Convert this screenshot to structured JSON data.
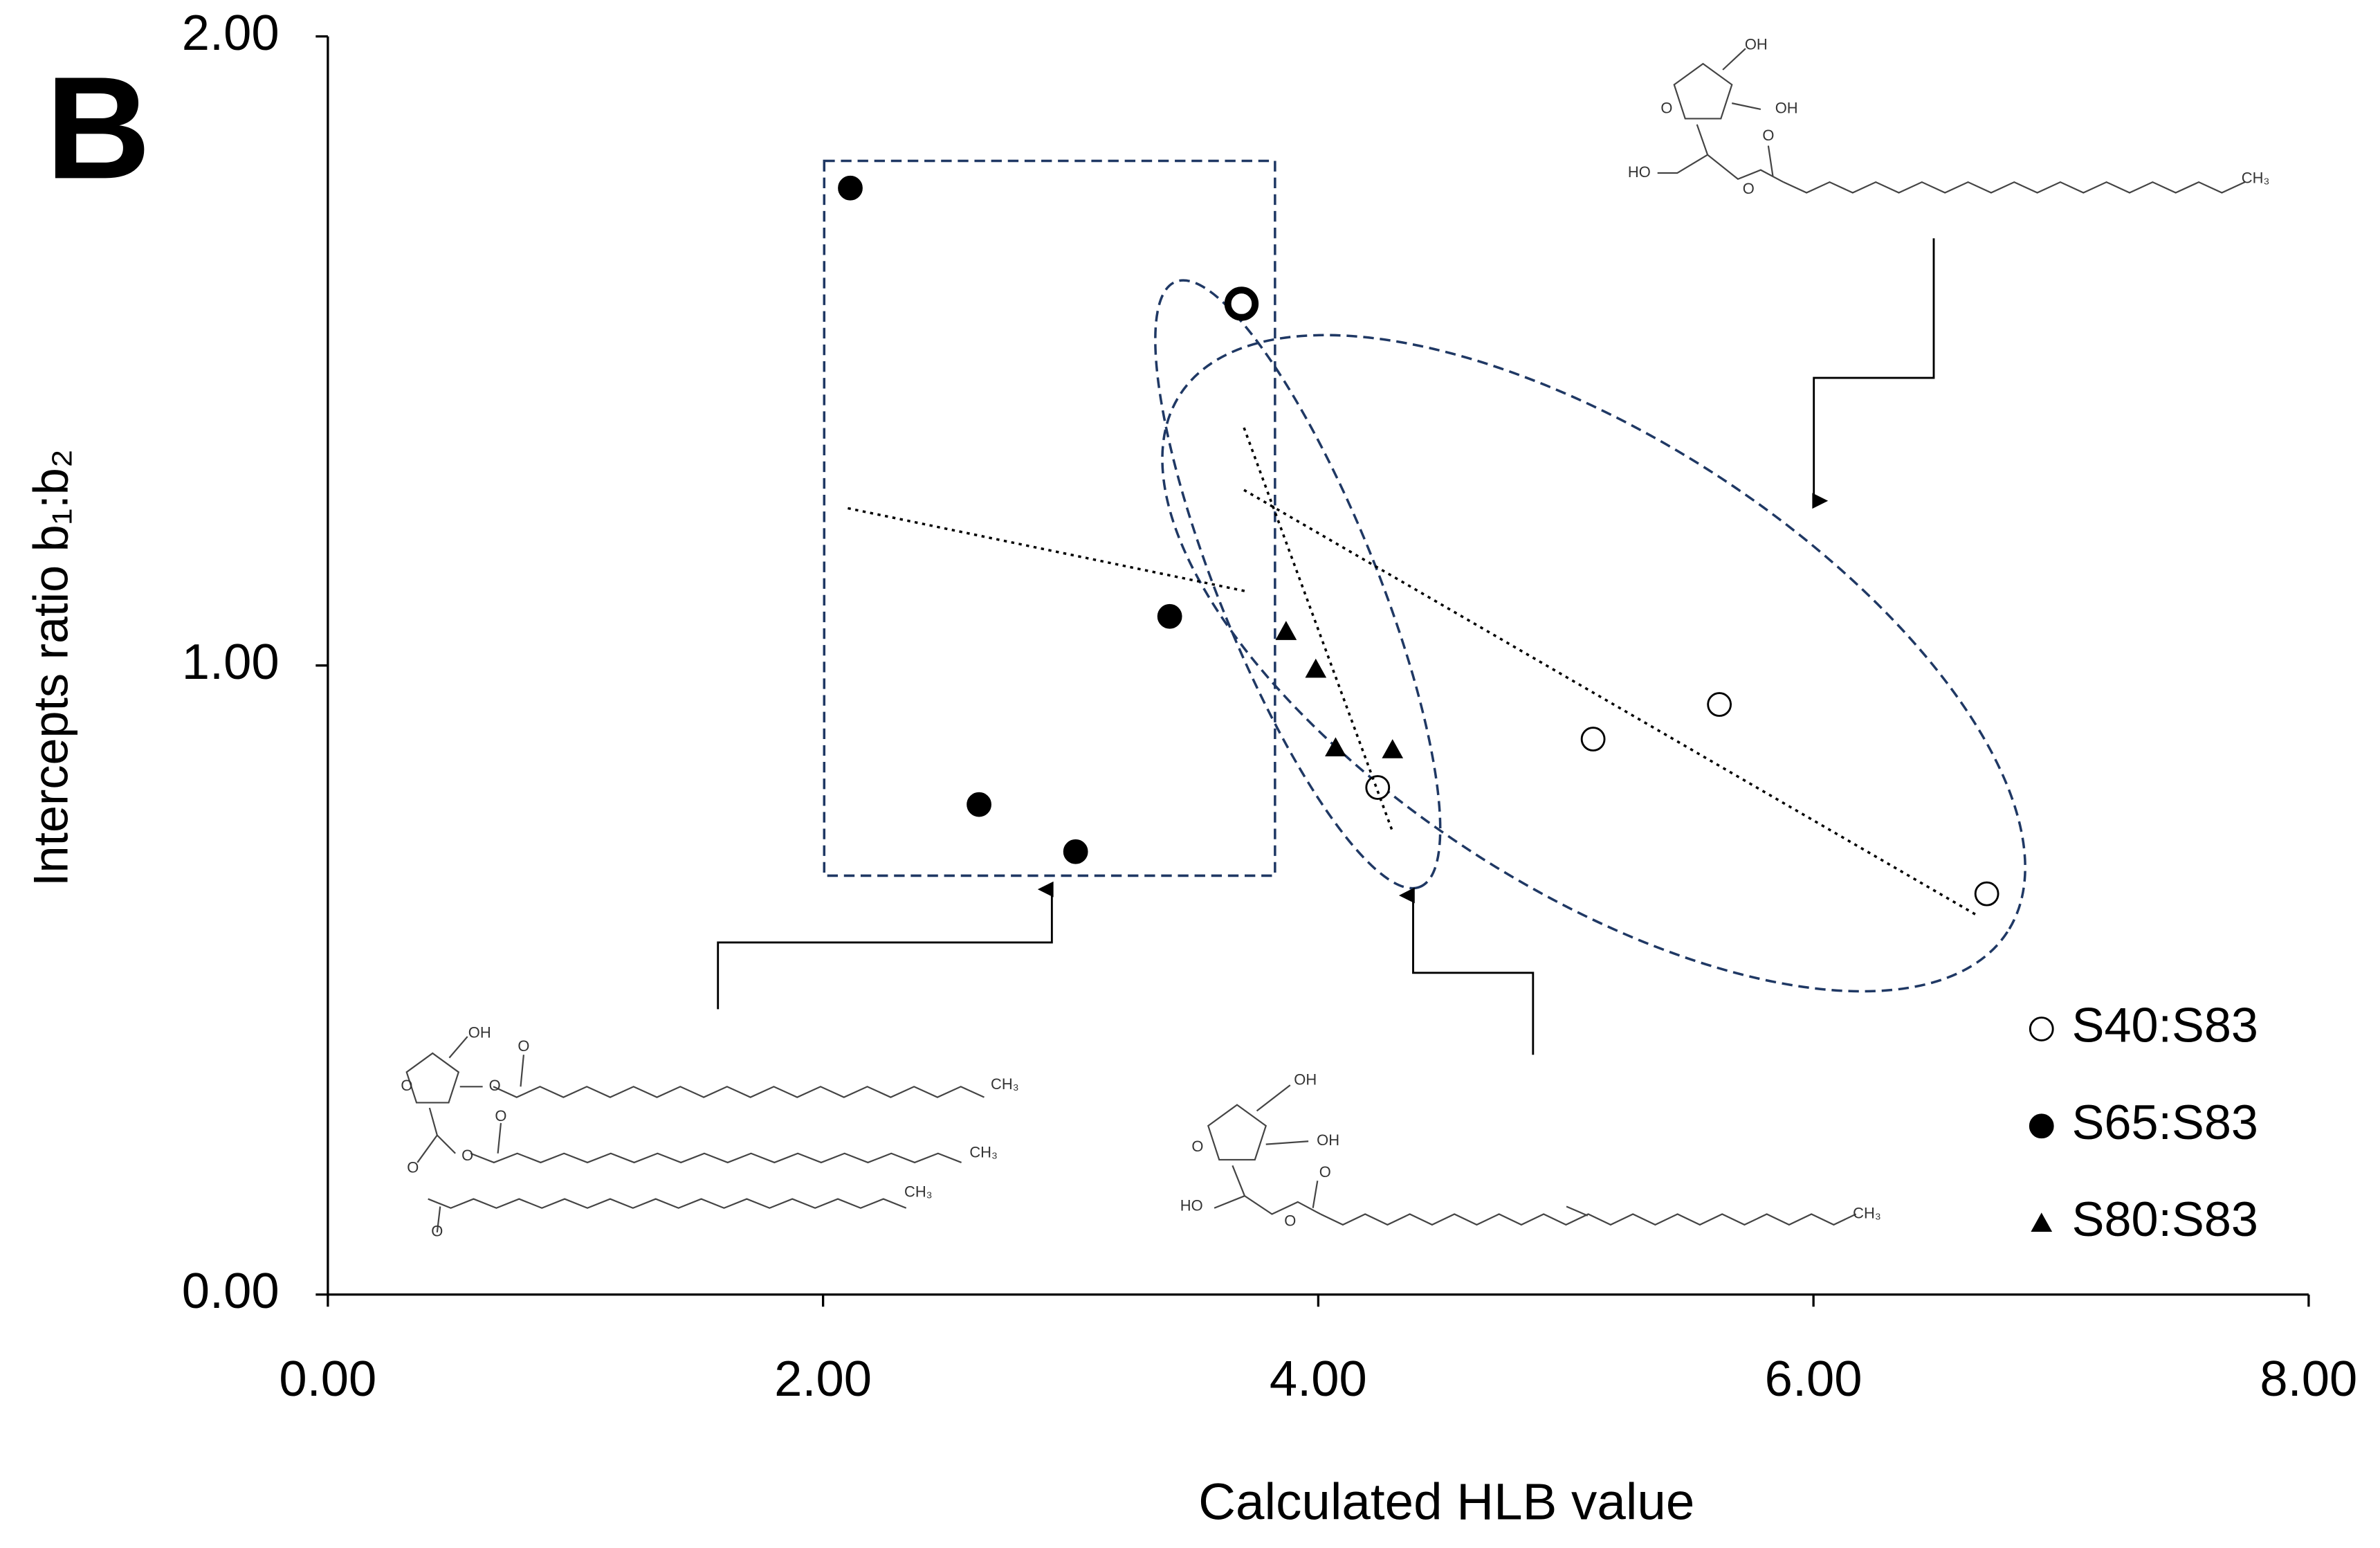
{
  "chart_data": {
    "type": "scatter",
    "panel_label": "B",
    "xlabel": "Calculated HLB value",
    "ylabel": "Intercepts ratio b₁:b₂",
    "xlim": [
      0,
      8
    ],
    "ylim": [
      0,
      2
    ],
    "xticks": [
      {
        "value": 0,
        "label": "0.00"
      },
      {
        "value": 2,
        "label": "2.00"
      },
      {
        "value": 4,
        "label": "4.00"
      },
      {
        "value": 6,
        "label": "6.00"
      },
      {
        "value": 8,
        "label": "8.00"
      }
    ],
    "yticks": [
      {
        "value": 0,
        "label": "0.00"
      },
      {
        "value": 1,
        "label": "1.00"
      },
      {
        "value": 2,
        "label": "2.00"
      }
    ],
    "legend": "lower right",
    "series": [
      {
        "name": "S40:S83",
        "color": "#000000",
        "marker": "circle-open",
        "highlight": [
          0
        ],
        "x": [
          3.69,
          4.24,
          5.11,
          5.62,
          6.7
        ],
        "values": [
          1.575,
          0.806,
          0.883,
          0.938,
          0.637
        ],
        "trend": {
          "x": [
            3.7,
            6.66
          ],
          "y": [
            1.279,
            0.603
          ]
        }
      },
      {
        "name": "S65:S83",
        "color": "#000000",
        "marker": "circle",
        "x": [
          2.11,
          2.63,
          3.02,
          3.4
        ],
        "values": [
          1.759,
          0.779,
          0.704,
          1.078
        ],
        "trend": {
          "x": [
            2.1,
            3.72
          ],
          "y": [
            1.25,
            1.117
          ]
        }
      },
      {
        "name": "S80:S83",
        "color": "#000000",
        "marker": "triangle",
        "x": [
          3.87,
          3.99,
          4.07,
          4.3
        ],
        "values": [
          1.054,
          0.994,
          0.869,
          0.866
        ],
        "trend": {
          "x": [
            3.7,
            4.3
          ],
          "y": [
            1.378,
            0.736
          ]
        }
      }
    ],
    "structures": [
      {
        "labels": [
          "OH",
          "OH",
          "O",
          "HO",
          "O",
          "O",
          "CH₃"
        ]
      },
      {
        "labels": [
          "OH",
          "O",
          "O",
          "O",
          "O",
          "O",
          "O",
          "O",
          "CH₃",
          "CH₃",
          "CH₃"
        ]
      },
      {
        "labels": [
          "OH",
          "OH",
          "O",
          "HO",
          "O",
          "O",
          "CH₃"
        ]
      }
    ]
  }
}
